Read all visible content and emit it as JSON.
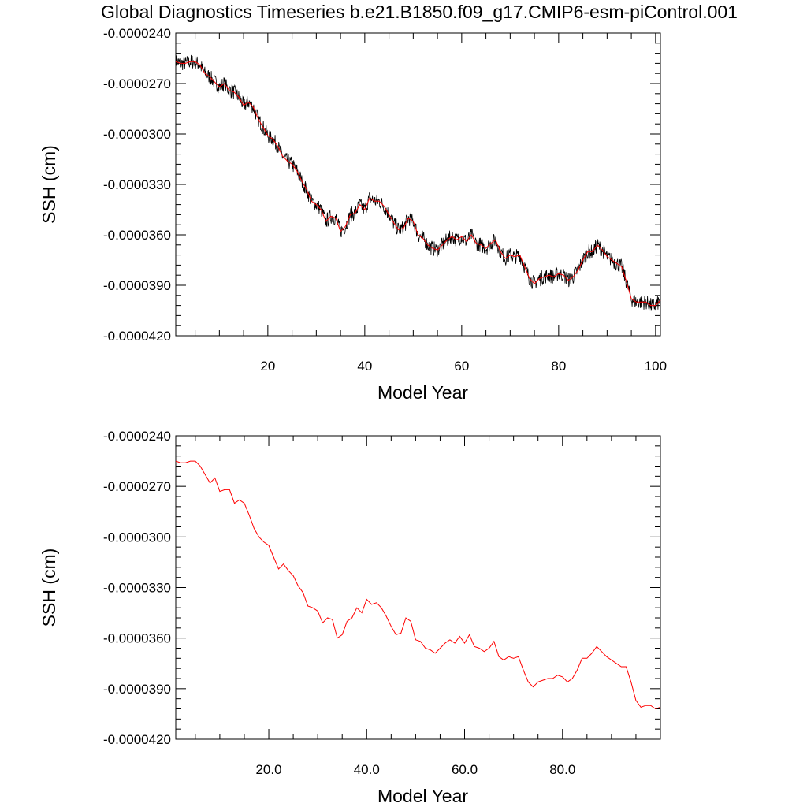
{
  "title": "Global Diagnostics Timeseries b.e21.B1850.f09_g17.CMIP6-esm-piControl.001",
  "colors": {
    "raw": "#000000",
    "smoothed": "#ff0000",
    "axis": "#000000",
    "background": "#ffffff"
  },
  "chart_data": [
    {
      "type": "line",
      "xlabel": "Model Year",
      "ylabel": "SSH (cm)",
      "xlim": [
        1,
        101
      ],
      "ylim": [
        -4.2e-05,
        -2.4e-05
      ],
      "x_ticks": [
        20,
        40,
        60,
        80,
        100
      ],
      "x_tick_labels": [
        "20",
        "40",
        "60",
        "80",
        "100"
      ],
      "y_ticks": [
        -2.4e-05,
        -2.7e-05,
        -3e-05,
        -3.3e-05,
        -3.6e-05,
        -3.9e-05,
        -4.2e-05
      ],
      "y_tick_labels": [
        "-0.0000240",
        "-0.0000270",
        "-0.0000300",
        "-0.0000330",
        "-0.0000360",
        "-0.0000390",
        "-0.0000420"
      ],
      "grid": false,
      "legend": "none",
      "series": [
        {
          "style": "monthly raw, black thin line with noise (approx. amplitude 0.0000005)",
          "color": "#000000",
          "x": [
            1,
            2,
            3,
            4,
            5,
            6,
            7,
            8,
            9,
            10,
            11,
            12,
            13,
            14,
            15,
            16,
            17,
            18,
            19,
            20,
            21,
            22,
            23,
            24,
            25,
            26,
            27,
            28,
            29,
            30,
            31,
            32,
            33,
            34,
            35,
            36,
            37,
            38,
            39,
            40,
            41,
            42,
            43,
            44,
            45,
            46,
            47,
            48,
            49,
            50,
            51,
            52,
            53,
            54,
            55,
            56,
            57,
            58,
            59,
            60,
            61,
            62,
            63,
            64,
            65,
            66,
            67,
            68,
            69,
            70,
            71,
            72,
            73,
            74,
            75,
            76,
            77,
            78,
            79,
            80,
            81,
            82,
            83,
            84,
            85,
            86,
            87,
            88,
            89,
            90,
            91,
            92,
            93,
            94,
            95,
            96,
            97,
            98,
            99,
            100,
            101
          ],
          "y": [
            -2.57e-05,
            -2.58e-05,
            -2.58e-05,
            -2.57e-05,
            -2.57e-05,
            -2.59e-05,
            -2.64e-05,
            -2.66e-05,
            -2.69e-05,
            -2.72e-05,
            -2.7e-05,
            -2.74e-05,
            -2.75e-05,
            -2.78e-05,
            -2.83e-05,
            -2.81e-05,
            -2.84e-05,
            -2.91e-05,
            -2.96e-05,
            -3.01e-05,
            -3.03e-05,
            -3.07e-05,
            -3.13e-05,
            -3.16e-05,
            -3.18e-05,
            -3.22e-05,
            -3.28e-05,
            -3.33e-05,
            -3.4e-05,
            -3.42e-05,
            -3.45e-05,
            -3.52e-05,
            -3.49e-05,
            -3.5e-05,
            -3.58e-05,
            -3.55e-05,
            -3.48e-05,
            -3.47e-05,
            -3.42e-05,
            -3.45e-05,
            -3.38e-05,
            -3.4e-05,
            -3.4e-05,
            -3.43e-05,
            -3.48e-05,
            -3.53e-05,
            -3.57e-05,
            -3.56e-05,
            -3.5e-05,
            -3.52e-05,
            -3.6e-05,
            -3.62e-05,
            -3.66e-05,
            -3.68e-05,
            -3.69e-05,
            -3.66e-05,
            -3.63e-05,
            -3.61e-05,
            -3.63e-05,
            -3.61e-05,
            -3.64e-05,
            -3.6e-05,
            -3.65e-05,
            -3.66e-05,
            -3.68e-05,
            -3.65e-05,
            -3.63e-05,
            -3.7e-05,
            -3.74e-05,
            -3.72e-05,
            -3.73e-05,
            -3.72e-05,
            -3.79e-05,
            -3.86e-05,
            -3.89e-05,
            -3.86e-05,
            -3.85e-05,
            -3.84e-05,
            -3.85e-05,
            -3.83e-05,
            -3.84e-05,
            -3.87e-05,
            -3.85e-05,
            -3.81e-05,
            -3.75e-05,
            -3.7e-05,
            -3.7e-05,
            -3.66e-05,
            -3.69e-05,
            -3.73e-05,
            -3.75e-05,
            -3.77e-05,
            -3.79e-05,
            -3.88e-05,
            -3.98e-05,
            -4e-05,
            -4e-05,
            -4e-05,
            -4.02e-05,
            -4.02e-05,
            -3.99e-05
          ]
        },
        {
          "style": "annual mean, red line",
          "color": "#ff0000",
          "x": [
            1,
            2,
            3,
            4,
            5,
            6,
            7,
            8,
            9,
            10,
            11,
            12,
            13,
            14,
            15,
            16,
            17,
            18,
            19,
            20,
            21,
            22,
            23,
            24,
            25,
            26,
            27,
            28,
            29,
            30,
            31,
            32,
            33,
            34,
            35,
            36,
            37,
            38,
            39,
            40,
            41,
            42,
            43,
            44,
            45,
            46,
            47,
            48,
            49,
            50,
            51,
            52,
            53,
            54,
            55,
            56,
            57,
            58,
            59,
            60,
            61,
            62,
            63,
            64,
            65,
            66,
            67,
            68,
            69,
            70,
            71,
            72,
            73,
            74,
            75,
            76,
            77,
            78,
            79,
            80,
            81,
            82,
            83,
            84,
            85,
            86,
            87,
            88,
            89,
            90,
            91,
            92,
            93,
            94,
            95,
            96,
            97,
            98,
            99,
            100,
            101
          ],
          "y": [
            -2.57e-05,
            -2.58e-05,
            -2.58e-05,
            -2.57e-05,
            -2.57e-05,
            -2.59e-05,
            -2.64e-05,
            -2.66e-05,
            -2.69e-05,
            -2.72e-05,
            -2.7e-05,
            -2.74e-05,
            -2.75e-05,
            -2.78e-05,
            -2.83e-05,
            -2.81e-05,
            -2.84e-05,
            -2.91e-05,
            -2.96e-05,
            -3.01e-05,
            -3.03e-05,
            -3.07e-05,
            -3.13e-05,
            -3.16e-05,
            -3.18e-05,
            -3.22e-05,
            -3.28e-05,
            -3.33e-05,
            -3.4e-05,
            -3.42e-05,
            -3.45e-05,
            -3.52e-05,
            -3.49e-05,
            -3.5e-05,
            -3.58e-05,
            -3.55e-05,
            -3.48e-05,
            -3.47e-05,
            -3.42e-05,
            -3.45e-05,
            -3.38e-05,
            -3.4e-05,
            -3.4e-05,
            -3.43e-05,
            -3.48e-05,
            -3.53e-05,
            -3.57e-05,
            -3.56e-05,
            -3.5e-05,
            -3.52e-05,
            -3.6e-05,
            -3.62e-05,
            -3.66e-05,
            -3.68e-05,
            -3.69e-05,
            -3.66e-05,
            -3.63e-05,
            -3.61e-05,
            -3.63e-05,
            -3.61e-05,
            -3.64e-05,
            -3.6e-05,
            -3.65e-05,
            -3.66e-05,
            -3.68e-05,
            -3.65e-05,
            -3.63e-05,
            -3.7e-05,
            -3.74e-05,
            -3.72e-05,
            -3.73e-05,
            -3.72e-05,
            -3.79e-05,
            -3.86e-05,
            -3.89e-05,
            -3.86e-05,
            -3.85e-05,
            -3.84e-05,
            -3.85e-05,
            -3.83e-05,
            -3.84e-05,
            -3.87e-05,
            -3.85e-05,
            -3.81e-05,
            -3.75e-05,
            -3.7e-05,
            -3.7e-05,
            -3.66e-05,
            -3.69e-05,
            -3.73e-05,
            -3.75e-05,
            -3.77e-05,
            -3.79e-05,
            -3.88e-05,
            -3.98e-05,
            -4e-05,
            -4e-05,
            -4e-05,
            -4.02e-05,
            -4.02e-05,
            -3.99e-05
          ]
        }
      ]
    },
    {
      "type": "line",
      "xlabel": "Model Year",
      "ylabel": "SSH (cm)",
      "xlim": [
        1,
        100
      ],
      "ylim": [
        -4.2e-05,
        -2.4e-05
      ],
      "x_ticks": [
        20,
        40,
        60,
        80
      ],
      "x_tick_labels": [
        "20.0",
        "40.0",
        "60.0",
        "80.0"
      ],
      "y_ticks": [
        -2.4e-05,
        -2.7e-05,
        -3e-05,
        -3.3e-05,
        -3.6e-05,
        -3.9e-05,
        -4.2e-05
      ],
      "y_tick_labels": [
        "-0.0000240",
        "-0.0000270",
        "-0.0000300",
        "-0.0000330",
        "-0.0000360",
        "-0.0000390",
        "-0.0000420"
      ],
      "grid": false,
      "legend": "none",
      "series": [
        {
          "style": "annual mean, red line",
          "color": "#ff0000",
          "x": [
            1,
            2,
            3,
            4,
            5,
            6,
            7,
            8,
            9,
            10,
            11,
            12,
            13,
            14,
            15,
            16,
            17,
            18,
            19,
            20,
            21,
            22,
            23,
            24,
            25,
            26,
            27,
            28,
            29,
            30,
            31,
            32,
            33,
            34,
            35,
            36,
            37,
            38,
            39,
            40,
            41,
            42,
            43,
            44,
            45,
            46,
            47,
            48,
            49,
            50,
            51,
            52,
            53,
            54,
            55,
            56,
            57,
            58,
            59,
            60,
            61,
            62,
            63,
            64,
            65,
            66,
            67,
            68,
            69,
            70,
            71,
            72,
            73,
            74,
            75,
            76,
            77,
            78,
            79,
            80,
            81,
            82,
            83,
            84,
            85,
            86,
            87,
            88,
            89,
            90,
            91,
            92,
            93,
            94,
            95,
            96,
            97,
            98,
            99,
            100
          ],
          "y": [
            -2.55e-05,
            -2.56e-05,
            -2.56e-05,
            -2.55e-05,
            -2.55e-05,
            -2.58e-05,
            -2.63e-05,
            -2.68e-05,
            -2.65e-05,
            -2.73e-05,
            -2.72e-05,
            -2.72e-05,
            -2.8e-05,
            -2.78e-05,
            -2.8e-05,
            -2.87e-05,
            -2.95e-05,
            -3e-05,
            -3.03e-05,
            -3.05e-05,
            -3.12e-05,
            -3.19e-05,
            -3.16e-05,
            -3.2e-05,
            -3.23e-05,
            -3.29e-05,
            -3.33e-05,
            -3.41e-05,
            -3.42e-05,
            -3.44e-05,
            -3.51e-05,
            -3.48e-05,
            -3.49e-05,
            -3.6e-05,
            -3.58e-05,
            -3.5e-05,
            -3.48e-05,
            -3.42e-05,
            -3.45e-05,
            -3.37e-05,
            -3.4e-05,
            -3.39e-05,
            -3.42e-05,
            -3.47e-05,
            -3.53e-05,
            -3.58e-05,
            -3.57e-05,
            -3.48e-05,
            -3.5e-05,
            -3.61e-05,
            -3.62e-05,
            -3.66e-05,
            -3.67e-05,
            -3.69e-05,
            -3.66e-05,
            -3.63e-05,
            -3.61e-05,
            -3.63e-05,
            -3.59e-05,
            -3.63e-05,
            -3.58e-05,
            -3.65e-05,
            -3.66e-05,
            -3.68e-05,
            -3.66e-05,
            -3.62e-05,
            -3.71e-05,
            -3.73e-05,
            -3.71e-05,
            -3.72e-05,
            -3.71e-05,
            -3.79e-05,
            -3.86e-05,
            -3.89e-05,
            -3.86e-05,
            -3.85e-05,
            -3.84e-05,
            -3.84e-05,
            -3.82e-05,
            -3.83e-05,
            -3.86e-05,
            -3.84e-05,
            -3.79e-05,
            -3.72e-05,
            -3.72e-05,
            -3.69e-05,
            -3.65e-05,
            -3.68e-05,
            -3.71e-05,
            -3.73e-05,
            -3.75e-05,
            -3.77e-05,
            -3.77e-05,
            -3.86e-05,
            -3.97e-05,
            -4.01e-05,
            -4e-05,
            -4e-05,
            -4.02e-05,
            -4.01e-05
          ]
        }
      ]
    }
  ]
}
